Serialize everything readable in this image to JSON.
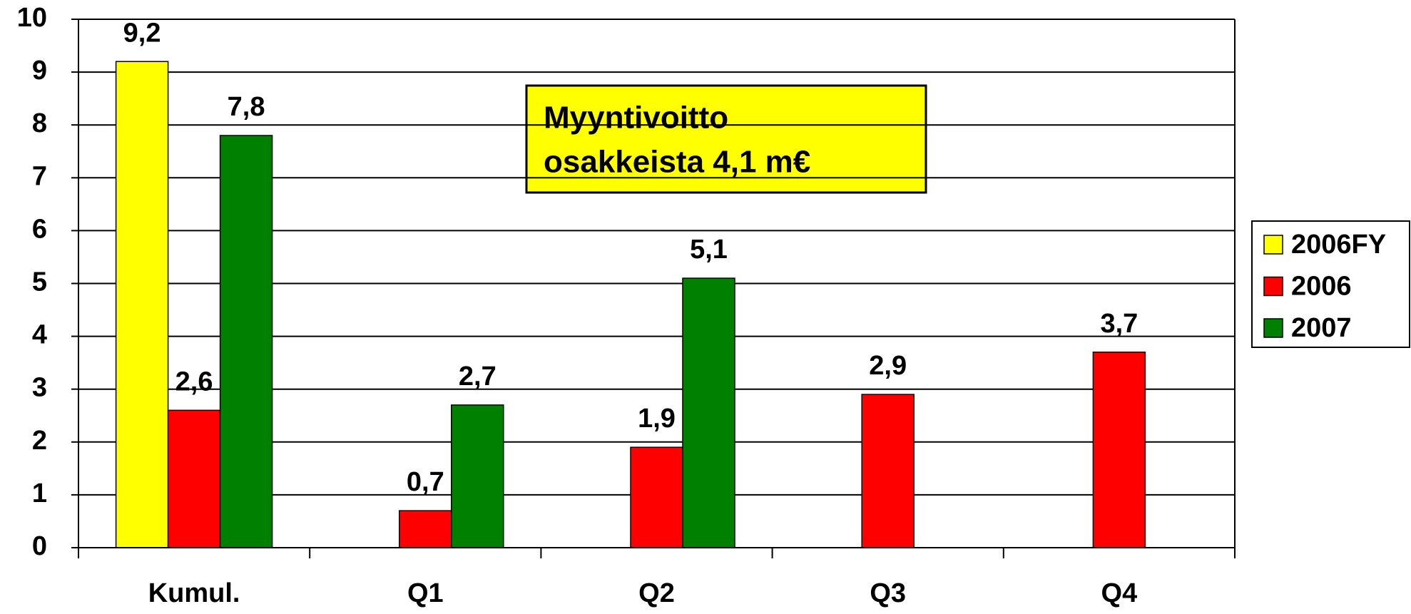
{
  "chart_data": {
    "type": "bar",
    "categories": [
      "Kumul.",
      "Q1",
      "Q2",
      "Q3",
      "Q4"
    ],
    "series": [
      {
        "name": "2006FY",
        "color": "#ffff00",
        "values": [
          9.2,
          null,
          null,
          null,
          null
        ],
        "value_labels": [
          "9,2",
          null,
          null,
          null,
          null
        ]
      },
      {
        "name": "2006",
        "color": "#ff0000",
        "values": [
          2.6,
          0.7,
          1.9,
          2.9,
          3.7
        ],
        "value_labels": [
          "2,6",
          "0,7",
          "1,9",
          "2,9",
          "3,7"
        ]
      },
      {
        "name": "2007",
        "color": "#008000",
        "values": [
          7.8,
          2.7,
          5.1,
          null,
          null
        ],
        "value_labels": [
          "7,8",
          "2,7",
          "5,1",
          null,
          null
        ]
      }
    ],
    "ylim": [
      0,
      10
    ],
    "yticks": [
      0,
      1,
      2,
      3,
      4,
      5,
      6,
      7,
      8,
      9,
      10
    ],
    "grid": true,
    "legend": "right",
    "annotation": [
      "Myyntivoitto",
      "osakkeista 4,1 m€"
    ]
  }
}
